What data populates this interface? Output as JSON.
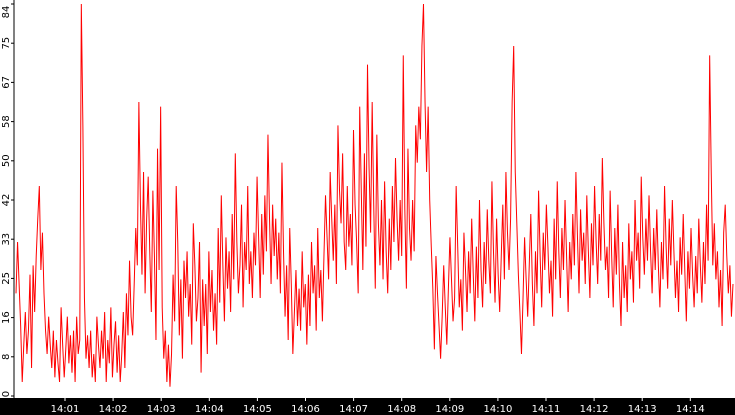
{
  "chart_data": {
    "type": "line",
    "title": "",
    "xlabel": "",
    "ylabel": "",
    "grid": false,
    "legend": "none",
    "line_color": "#ff0000",
    "axis_band_color": "#000000",
    "y_ticks": [
      "0",
      "8",
      "16",
      "25",
      "33",
      "42",
      "50",
      "58",
      "67",
      "75",
      "84"
    ],
    "y_tick_values": [
      0,
      8.4,
      16.8,
      25.2,
      33.6,
      42,
      50.4,
      58.8,
      67.2,
      75.6,
      84
    ],
    "ylim": [
      0,
      84
    ],
    "x_tick_labels": [
      "14:01",
      "14:02",
      "14:03",
      "14:04",
      "14:05",
      "14:06",
      "14:07",
      "14:08",
      "14:09",
      "14:10",
      "14:11",
      "14:12",
      "14:13",
      "14:14"
    ],
    "x_range_minutes": [
      "14:00:18",
      "14:15:12"
    ],
    "series": [
      {
        "sample_interval": "1s",
        "values": [
          22,
          33,
          24,
          15,
          3,
          11,
          18,
          9,
          14,
          26,
          6,
          28,
          18,
          30,
          38,
          45,
          27,
          35,
          22,
          14,
          9,
          17,
          11,
          6,
          14,
          4,
          12,
          7,
          3,
          19,
          11,
          4,
          10,
          17,
          7,
          13,
          5,
          14,
          3,
          17,
          9,
          12,
          84,
          58,
          21,
          8,
          13,
          6,
          14,
          4,
          9,
          3,
          17,
          11,
          6,
          14,
          8,
          18,
          3,
          12,
          7,
          19,
          4,
          11,
          16,
          5,
          13,
          3,
          9,
          18,
          6,
          22,
          13,
          29,
          17,
          13,
          24,
          36,
          28,
          63,
          41,
          26,
          48,
          22,
          38,
          47,
          31,
          18,
          44,
          30,
          12,
          53,
          27,
          62,
          19,
          8,
          14,
          3,
          11,
          2,
          9,
          26,
          16,
          45,
          33,
          13,
          25,
          8,
          29,
          21,
          31,
          17,
          24,
          11,
          37,
          28,
          16,
          21,
          33,
          5,
          25,
          15,
          24,
          9,
          31,
          18,
          27,
          14,
          22,
          11,
          36,
          20,
          43,
          28,
          16,
          34,
          23,
          31,
          18,
          39,
          25,
          52,
          33,
          22,
          28,
          41,
          19,
          33,
          27,
          45,
          24,
          31,
          21,
          35,
          28,
          47,
          34,
          21,
          39,
          26,
          43,
          31,
          56,
          38,
          24,
          41,
          30,
          38,
          25,
          35,
          22,
          50,
          31,
          17,
          28,
          12,
          36,
          24,
          9,
          18,
          27,
          15,
          23,
          14,
          31,
          19,
          24,
          11,
          26,
          15,
          33,
          22,
          28,
          14,
          36,
          21,
          27,
          16,
          30,
          43,
          34,
          25,
          48,
          38,
          29,
          41,
          24,
          58,
          44,
          37,
          52,
          33,
          27,
          45,
          32,
          39,
          28,
          57,
          41,
          33,
          22,
          62,
          44,
          27,
          52,
          32,
          71,
          49,
          35,
          63,
          41,
          23,
          56,
          37,
          28,
          42,
          25,
          46,
          31,
          22,
          38,
          27,
          45,
          33,
          51,
          38,
          29,
          42,
          30,
          73,
          40,
          23,
          53,
          36,
          29,
          42,
          31,
          58,
          50,
          62,
          55,
          75,
          84,
          63,
          48,
          62,
          42,
          32,
          23,
          10,
          30,
          22,
          15,
          8,
          17,
          28,
          19,
          11,
          23,
          34,
          25,
          16,
          21,
          45,
          32,
          19,
          25,
          14,
          35,
          27,
          18,
          31,
          22,
          38,
          26,
          16,
          32,
          21,
          42,
          27,
          19,
          33,
          24,
          40,
          29,
          22,
          46,
          31,
          20,
          38,
          26,
          18,
          30,
          41,
          25,
          48,
          35,
          27,
          38,
          63,
          75,
          48,
          37,
          26,
          18,
          9,
          21,
          34,
          25,
          17,
          28,
          39,
          24,
          15,
          31,
          22,
          44,
          30,
          19,
          35,
          27,
          41,
          32,
          22,
          29,
          17,
          38,
          25,
          46,
          31,
          21,
          36,
          27,
          42,
          30,
          18,
          33,
          25,
          39,
          28,
          48,
          34,
          22,
          40,
          29,
          35,
          24,
          43,
          31,
          21,
          37,
          28,
          45,
          33,
          24,
          39,
          29,
          51,
          37,
          27,
          32,
          21,
          44,
          30,
          19,
          36,
          26,
          41,
          24,
          15,
          33,
          21,
          28,
          18,
          37,
          25,
          31,
          20,
          42,
          29,
          35,
          23,
          47,
          34,
          26,
          38,
          29,
          43,
          31,
          22,
          36,
          27,
          40,
          28,
          19,
          33,
          25,
          45,
          32,
          23,
          38,
          28,
          42,
          31,
          21,
          29,
          18,
          34,
          26,
          39,
          27,
          16,
          31,
          23,
          36,
          26,
          19,
          30,
          22,
          38,
          28,
          20,
          33,
          24,
          41,
          29,
          73,
          48,
          28,
          37,
          25,
          31,
          19,
          27,
          15,
          35,
          41,
          30,
          22,
          28,
          17,
          24
        ]
      }
    ]
  }
}
